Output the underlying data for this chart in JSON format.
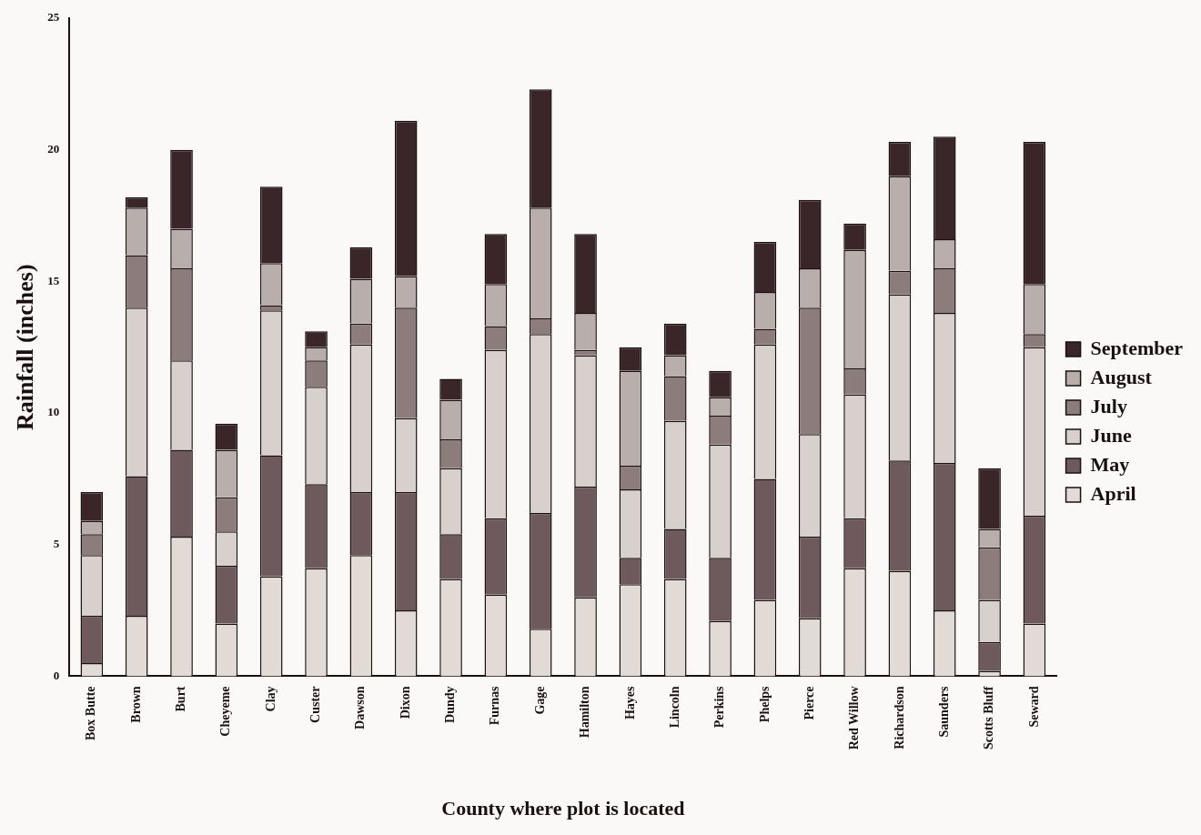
{
  "chart_data": {
    "type": "bar",
    "stacked": true,
    "xlabel": "County where plot is located",
    "ylabel": "Rainfall (inches)",
    "categories": [
      "Box Butte",
      "Brown",
      "Burt",
      "Cheyeme",
      "Clay",
      "Custer",
      "Dawson",
      "Dixon",
      "Dundy",
      "Furnas",
      "Gage",
      "Hamilton",
      "Hayes",
      "Lincoln",
      "Perkins",
      "Phelps",
      "Pierce",
      "Red Willow",
      "Richardson",
      "Saunders",
      "Scotts Bluff",
      "Seward"
    ],
    "series": [
      {
        "name": "April",
        "color": "#e2dad4",
        "values": [
          0.5,
          2.3,
          5.3,
          2.0,
          3.8,
          4.1,
          4.6,
          2.5,
          3.7,
          3.1,
          1.8,
          3.0,
          3.5,
          3.7,
          2.1,
          2.9,
          2.2,
          4.1,
          4.0,
          2.5,
          0.2,
          2.0
        ]
      },
      {
        "name": "May",
        "color": "#6e5a5c",
        "values": [
          1.8,
          5.3,
          3.3,
          2.2,
          4.6,
          3.2,
          2.4,
          4.5,
          1.7,
          2.9,
          4.4,
          4.2,
          1.0,
          1.9,
          2.4,
          4.6,
          3.1,
          1.9,
          4.2,
          5.6,
          1.1,
          4.1
        ]
      },
      {
        "name": "June",
        "color": "#d8d0cc",
        "values": [
          2.3,
          6.4,
          3.4,
          1.3,
          5.5,
          3.7,
          5.6,
          2.8,
          2.5,
          6.4,
          6.8,
          5.0,
          2.6,
          4.1,
          4.3,
          5.1,
          3.9,
          4.7,
          6.3,
          5.7,
          1.6,
          6.4
        ]
      },
      {
        "name": "July",
        "color": "#8c7c7c",
        "values": [
          0.8,
          2.0,
          3.5,
          1.3,
          0.2,
          1.0,
          0.8,
          4.2,
          1.1,
          0.9,
          0.6,
          0.2,
          0.9,
          1.7,
          1.1,
          0.6,
          4.8,
          1.0,
          0.9,
          1.7,
          2.0,
          0.5
        ]
      },
      {
        "name": "August",
        "color": "#b8aeac",
        "values": [
          0.5,
          1.8,
          1.5,
          1.8,
          1.6,
          0.5,
          1.7,
          1.2,
          1.5,
          1.6,
          4.2,
          1.4,
          3.6,
          0.8,
          0.7,
          1.4,
          1.5,
          4.5,
          3.6,
          1.1,
          0.7,
          1.9
        ]
      },
      {
        "name": "September",
        "color": "#3a2628",
        "values": [
          1.1,
          0.4,
          3.0,
          1.0,
          2.9,
          0.6,
          1.2,
          5.9,
          0.8,
          1.9,
          4.5,
          3.0,
          0.9,
          1.2,
          1.0,
          1.9,
          2.6,
          1.0,
          1.3,
          3.9,
          2.3,
          5.4
        ]
      }
    ],
    "ylim": [
      0,
      25
    ],
    "yticks": [
      0,
      5,
      10,
      15,
      20,
      25
    ],
    "grid": false,
    "legend": "right"
  }
}
